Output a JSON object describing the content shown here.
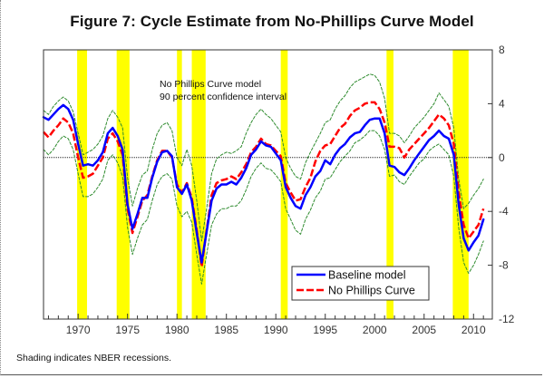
{
  "chart_data": {
    "type": "line",
    "title": "Figure 7:  Cycle Estimate from No-Phillips Curve Model",
    "xlabel": "",
    "ylabel": "",
    "xlim": [
      1966.5,
      2011.9
    ],
    "ylim": [
      -12,
      8
    ],
    "y_axis_side": "right",
    "y_ticks": [
      8,
      4,
      0,
      -4,
      -8,
      -12
    ],
    "x_ticks": [
      1970,
      1975,
      1980,
      1985,
      1990,
      1995,
      2000,
      2005,
      2010
    ],
    "zero_line": true,
    "grid": false,
    "annotation": [
      "No Phillips Curve model",
      "90 percent confidence interval"
    ],
    "legend": {
      "placement": "bottom-right",
      "entries": [
        "Baseline model",
        "No Phillips Curve"
      ]
    },
    "recessions": [
      [
        1969.9,
        1970.9
      ],
      [
        1973.9,
        1975.2
      ],
      [
        1980.0,
        1980.5
      ],
      [
        1981.5,
        1982.9
      ],
      [
        1990.5,
        1991.2
      ],
      [
        2001.2,
        2001.9
      ],
      [
        2007.9,
        2009.5
      ]
    ],
    "recession_color": "#ffff00",
    "series": [
      {
        "name": "Baseline model",
        "color": "#0000ff",
        "style": "solid",
        "x": [
          1966.5,
          1967,
          1967.5,
          1968,
          1968.5,
          1969,
          1969.5,
          1970,
          1970.5,
          1971,
          1971.5,
          1972,
          1972.5,
          1973,
          1973.5,
          1974,
          1974.5,
          1975,
          1975.5,
          1976,
          1976.5,
          1977,
          1977.5,
          1978,
          1978.5,
          1979,
          1979.5,
          1980,
          1980.5,
          1981,
          1981.5,
          1982,
          1982.5,
          1983,
          1983.5,
          1984,
          1984.5,
          1985,
          1985.5,
          1986,
          1986.5,
          1987,
          1987.5,
          1988,
          1988.5,
          1989,
          1989.5,
          1990,
          1990.5,
          1991,
          1991.5,
          1992,
          1992.5,
          1993,
          1993.5,
          1994,
          1994.5,
          1995,
          1995.5,
          1996,
          1996.5,
          1997,
          1997.5,
          1998,
          1998.5,
          1999,
          1999.5,
          2000,
          2000.5,
          2001,
          2001.5,
          2002,
          2002.5,
          2003,
          2003.5,
          2004,
          2004.5,
          2005,
          2005.5,
          2006,
          2006.5,
          2007,
          2007.5,
          2008,
          2008.5,
          2009,
          2009.5,
          2010,
          2010.5,
          2011
        ],
        "values": [
          3.0,
          2.8,
          3.2,
          3.6,
          3.9,
          3.6,
          2.8,
          1.0,
          -0.6,
          -0.5,
          -0.6,
          -0.2,
          0.4,
          1.8,
          2.2,
          1.6,
          0.6,
          -3.5,
          -5.3,
          -4.2,
          -3.0,
          -3.0,
          -1.5,
          -0.3,
          0.4,
          0.5,
          0.1,
          -2.2,
          -2.7,
          -2.0,
          -3.2,
          -5.6,
          -7.8,
          -5.5,
          -3.2,
          -2.3,
          -2.0,
          -2.0,
          -1.8,
          -2.0,
          -1.5,
          -0.8,
          0.2,
          0.6,
          1.2,
          0.9,
          0.8,
          0.3,
          -0.2,
          -2.2,
          -3.0,
          -3.6,
          -3.8,
          -2.8,
          -2.2,
          -1.4,
          -1.0,
          -0.2,
          -0.5,
          0.2,
          0.7,
          1.0,
          1.5,
          1.8,
          1.9,
          2.4,
          2.8,
          2.9,
          2.9,
          1.8,
          -0.6,
          -0.7,
          -1.1,
          -1.3,
          -0.8,
          -0.2,
          0.3,
          0.8,
          1.3,
          1.6,
          2.0,
          1.6,
          1.4,
          0.2,
          -3.5,
          -6.0,
          -6.9,
          -6.3,
          -5.8,
          -4.6
        ]
      },
      {
        "name": "No Phillips Curve",
        "color": "#ff0000",
        "style": "dashed",
        "x": [
          1966.5,
          1967,
          1967.5,
          1968,
          1968.5,
          1969,
          1969.5,
          1970,
          1970.5,
          1971,
          1971.5,
          1972,
          1972.5,
          1973,
          1973.5,
          1974,
          1974.5,
          1975,
          1975.5,
          1976,
          1976.5,
          1977,
          1977.5,
          1978,
          1978.5,
          1979,
          1979.5,
          1980,
          1980.5,
          1981,
          1981.5,
          1982,
          1982.5,
          1983,
          1983.5,
          1984,
          1984.5,
          1985,
          1985.5,
          1986,
          1986.5,
          1987,
          1987.5,
          1988,
          1988.5,
          1989,
          1989.5,
          1990,
          1990.5,
          1991,
          1991.5,
          1992,
          1992.5,
          1993,
          1993.5,
          1994,
          1994.5,
          1995,
          1995.5,
          1996,
          1996.5,
          1997,
          1997.5,
          1998,
          1998.5,
          1999,
          1999.5,
          2000,
          2000.5,
          2001,
          2001.5,
          2002,
          2002.5,
          2003,
          2003.5,
          2004,
          2004.5,
          2005,
          2005.5,
          2006,
          2006.5,
          2007,
          2007.5,
          2008,
          2008.5,
          2009,
          2009.5,
          2010,
          2010.5,
          2011
        ],
        "values": [
          1.9,
          1.5,
          2.0,
          2.4,
          2.9,
          2.6,
          1.8,
          0.0,
          -1.5,
          -1.4,
          -1.2,
          -0.6,
          0.0,
          1.4,
          1.8,
          1.2,
          0.2,
          -3.8,
          -5.6,
          -4.4,
          -3.2,
          -2.8,
          -1.4,
          -0.2,
          0.5,
          0.5,
          0.0,
          -2.0,
          -2.6,
          -1.9,
          -3.0,
          -5.4,
          -8.1,
          -5.4,
          -2.8,
          -1.9,
          -1.7,
          -1.6,
          -1.4,
          -1.6,
          -1.1,
          -0.5,
          0.4,
          0.8,
          1.4,
          1.0,
          0.9,
          0.5,
          0.1,
          -1.9,
          -2.6,
          -3.2,
          -3.1,
          -2.2,
          -1.5,
          -0.3,
          0.5,
          0.9,
          1.0,
          1.6,
          2.2,
          2.5,
          3.1,
          3.5,
          3.7,
          4.0,
          4.1,
          4.1,
          3.6,
          2.6,
          0.8,
          0.8,
          0.7,
          0.0,
          0.6,
          1.0,
          1.4,
          1.8,
          2.2,
          2.7,
          3.2,
          2.9,
          2.4,
          1.0,
          -2.6,
          -5.0,
          -6.0,
          -5.5,
          -5.0,
          -3.8
        ]
      },
      {
        "name": "Upper 90% band",
        "color": "#2e8b2e",
        "style": "dotted",
        "x": [
          1966.5,
          1967,
          1967.5,
          1968,
          1968.5,
          1969,
          1969.5,
          1970,
          1970.5,
          1971,
          1971.5,
          1972,
          1972.5,
          1973,
          1973.5,
          1974,
          1974.5,
          1975,
          1975.5,
          1976,
          1976.5,
          1977,
          1977.5,
          1978,
          1978.5,
          1979,
          1979.5,
          1980,
          1980.5,
          1981,
          1981.5,
          1982,
          1982.5,
          1983,
          1983.5,
          1984,
          1984.5,
          1985,
          1985.5,
          1986,
          1986.5,
          1987,
          1987.5,
          1988,
          1988.5,
          1989,
          1989.5,
          1990,
          1990.5,
          1991,
          1991.5,
          1992,
          1992.5,
          1993,
          1993.5,
          1994,
          1994.5,
          1995,
          1995.5,
          1996,
          1996.5,
          1997,
          1997.5,
          1998,
          1998.5,
          1999,
          1999.5,
          2000,
          2000.5,
          2001,
          2001.5,
          2002,
          2002.5,
          2003,
          2003.5,
          2004,
          2004.5,
          2005,
          2005.5,
          2006,
          2006.5,
          2007,
          2007.5,
          2008,
          2008.5,
          2009,
          2009.5,
          2010,
          2010.5,
          2011
        ],
        "values": [
          3.5,
          3.2,
          3.8,
          4.2,
          4.5,
          4.2,
          3.4,
          1.8,
          0.2,
          0.4,
          0.6,
          1.0,
          1.6,
          2.9,
          3.5,
          3.0,
          2.2,
          -1.5,
          -3.6,
          -2.3,
          -1.3,
          -1.0,
          0.6,
          1.8,
          2.4,
          2.6,
          2.0,
          0.0,
          -0.6,
          0.6,
          -0.6,
          -3.2,
          -6.2,
          -3.8,
          -1.2,
          -0.1,
          0.2,
          0.4,
          0.3,
          0.5,
          0.8,
          1.8,
          2.6,
          3.2,
          3.6,
          3.2,
          2.9,
          2.4,
          1.9,
          0.0,
          -0.8,
          -1.4,
          -1.6,
          -0.4,
          0.4,
          1.1,
          1.8,
          2.6,
          2.8,
          3.6,
          4.2,
          4.6,
          5.2,
          5.6,
          5.8,
          6.0,
          6.2,
          6.1,
          5.6,
          4.4,
          1.8,
          1.8,
          1.6,
          1.1,
          1.6,
          2.2,
          2.6,
          3.0,
          3.5,
          4.0,
          4.8,
          4.3,
          3.8,
          2.2,
          -1.6,
          -3.8,
          -3.4,
          -2.8,
          -2.3,
          -1.6
        ]
      },
      {
        "name": "Lower 90% band",
        "color": "#2e8b2e",
        "style": "dotted",
        "x": [
          1966.5,
          1967,
          1967.5,
          1968,
          1968.5,
          1969,
          1969.5,
          1970,
          1970.5,
          1971,
          1971.5,
          1972,
          1972.5,
          1973,
          1973.5,
          1974,
          1974.5,
          1975,
          1975.5,
          1976,
          1976.5,
          1977,
          1977.5,
          1978,
          1978.5,
          1979,
          1979.5,
          1980,
          1980.5,
          1981,
          1981.5,
          1982,
          1982.5,
          1983,
          1983.5,
          1984,
          1984.5,
          1985,
          1985.5,
          1986,
          1986.5,
          1987,
          1987.5,
          1988,
          1988.5,
          1989,
          1989.5,
          1990,
          1990.5,
          1991,
          1991.5,
          1992,
          1992.5,
          1993,
          1993.5,
          1994,
          1994.5,
          1995,
          1995.5,
          1996,
          1996.5,
          1997,
          1997.5,
          1998,
          1998.5,
          1999,
          1999.5,
          2000,
          2000.5,
          2001,
          2001.5,
          2002,
          2002.5,
          2003,
          2003.5,
          2004,
          2004.5,
          2005,
          2005.5,
          2006,
          2006.5,
          2007,
          2007.5,
          2008,
          2008.5,
          2009,
          2009.5,
          2010,
          2010.5,
          2011
        ],
        "values": [
          0.6,
          0.2,
          0.6,
          1.2,
          1.6,
          1.4,
          0.6,
          -1.2,
          -2.9,
          -2.9,
          -2.7,
          -2.2,
          -1.6,
          -0.2,
          0.2,
          -0.4,
          -1.4,
          -5.2,
          -7.2,
          -6.0,
          -5.0,
          -4.6,
          -3.2,
          -2.0,
          -1.4,
          -1.2,
          -1.6,
          -3.6,
          -4.4,
          -4.0,
          -4.8,
          -7.2,
          -9.4,
          -7.2,
          -5.0,
          -4.2,
          -3.8,
          -3.8,
          -3.6,
          -3.6,
          -3.2,
          -2.4,
          -1.4,
          -0.8,
          -0.4,
          -0.8,
          -0.9,
          -1.3,
          -1.8,
          -3.8,
          -4.6,
          -5.4,
          -5.7,
          -4.6,
          -3.9,
          -3.0,
          -2.5,
          -1.6,
          -1.5,
          -0.9,
          -0.3,
          0.1,
          0.5,
          1.1,
          1.3,
          1.6,
          2.0,
          2.0,
          1.6,
          0.6,
          -1.4,
          -1.3,
          -1.8,
          -2.0,
          -1.4,
          -0.9,
          -0.4,
          -0.1,
          0.5,
          0.8,
          1.0,
          0.6,
          0.2,
          -1.4,
          -5.2,
          -7.8,
          -8.6,
          -8.0,
          -7.2,
          -6.2
        ]
      }
    ]
  }
}
